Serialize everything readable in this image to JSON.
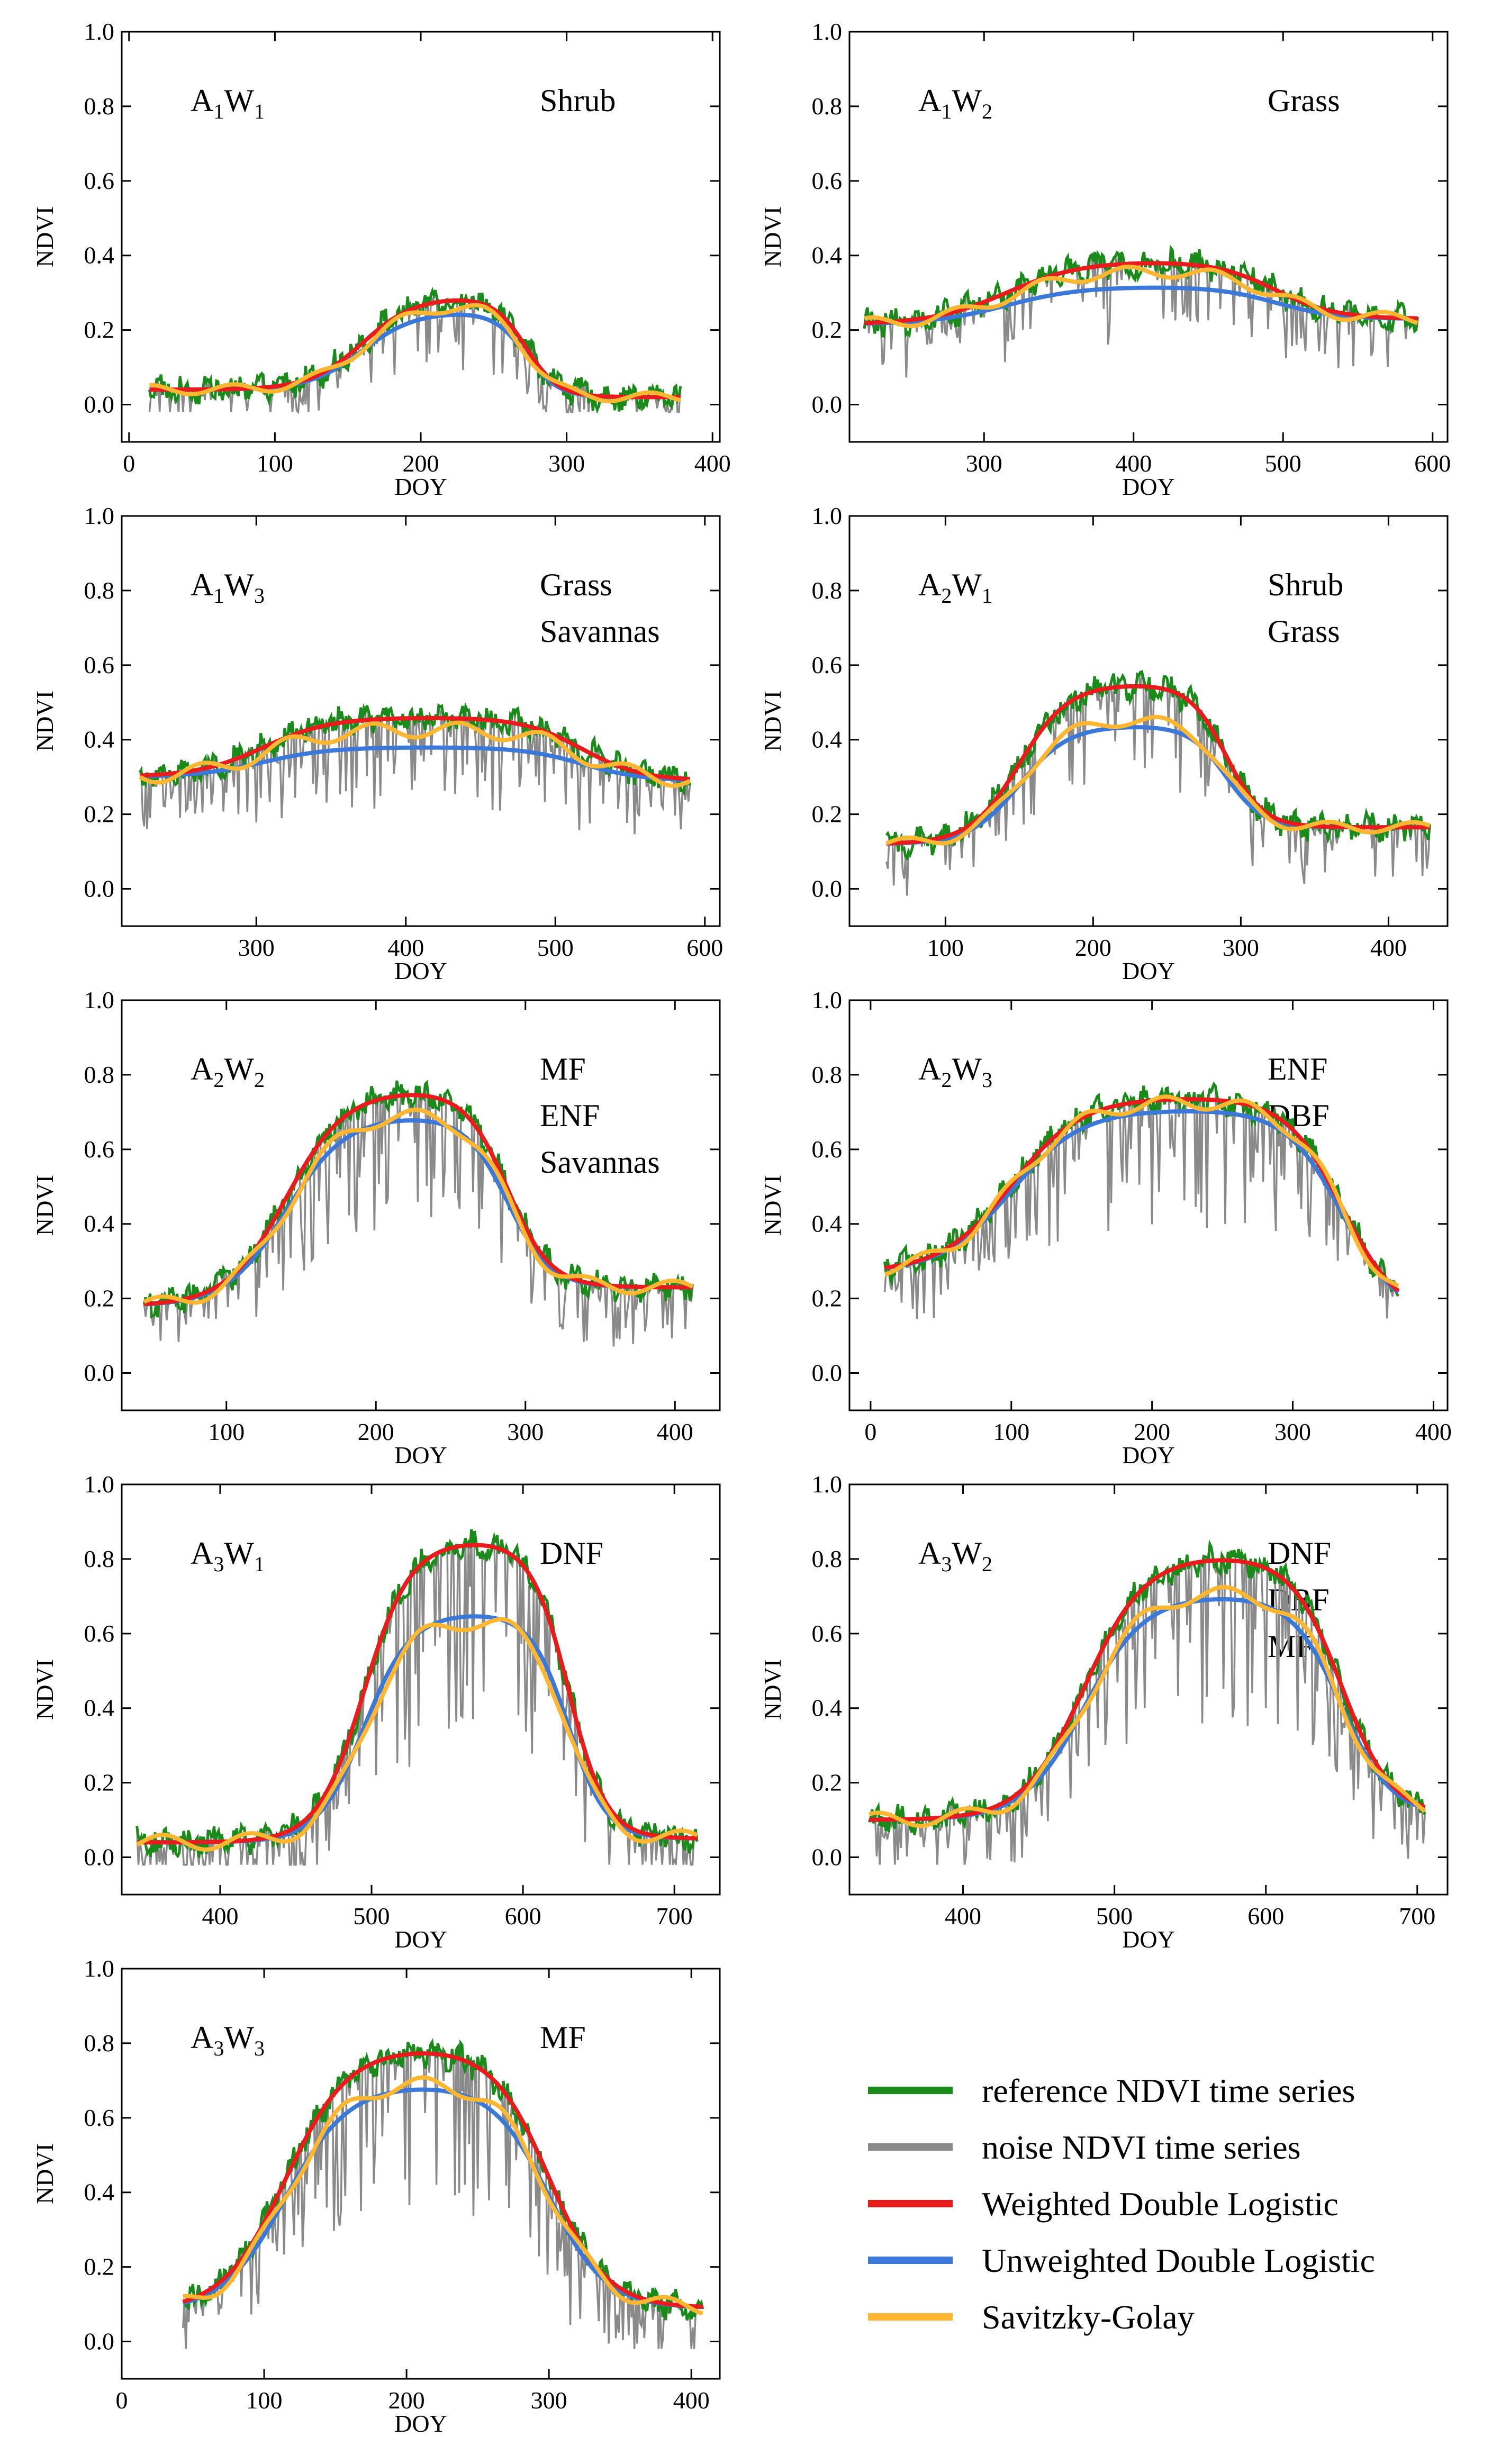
{
  "colors": {
    "reference": "#1a8a1a",
    "noise": "#8a8a8a",
    "weighted": "#e81c1c",
    "unweighted": "#3c78d8",
    "savgol": "#ffb732"
  },
  "legend": [
    {
      "key": "reference",
      "label": "reference NDVI time series"
    },
    {
      "key": "noise",
      "label": "noise NDVI time series"
    },
    {
      "key": "weighted",
      "label": "Weighted Double Logistic"
    },
    {
      "key": "unweighted",
      "label": "Unweighted Double Logistic"
    },
    {
      "key": "savgol",
      "label": "Savitzky-Golay"
    }
  ],
  "chart_data": [
    {
      "type": "line",
      "id": "A1W1",
      "panel_label": {
        "a": "1",
        "w": "1"
      },
      "land_cover": [
        "Shrub"
      ],
      "xlabel": "DOY",
      "ylabel": "NDVI",
      "xlim": [
        -5,
        405
      ],
      "ylim": [
        -0.1,
        1.0
      ],
      "x_range": [
        14,
        378
      ],
      "xticks": [
        0,
        100,
        200,
        300,
        400
      ],
      "yticks": [
        0.0,
        0.2,
        0.4,
        0.6,
        0.8,
        1.0
      ],
      "params": {
        "base": 0.04,
        "amp": 0.25,
        "sos": 160,
        "eos": 272,
        "rs": 0.055,
        "re": 0.09,
        "end": 0.02,
        "uw": 0.84,
        "sg": 0.92,
        "noise": 0.5
      },
      "series": [
        "reference NDVI time series",
        "noise NDVI time series",
        "Weighted Double Logistic",
        "Unweighted Double Logistic",
        "Savitzky-Golay"
      ]
    },
    {
      "type": "line",
      "id": "A1W2",
      "panel_label": {
        "a": "1",
        "w": "2"
      },
      "land_cover": [
        "Grass"
      ],
      "xlabel": "DOY",
      "ylabel": "NDVI",
      "xlim": [
        210,
        610
      ],
      "ylim": [
        -0.1,
        1.0
      ],
      "x_range": [
        220,
        590
      ],
      "xticks": [
        300,
        400,
        500,
        600
      ],
      "yticks": [
        0.0,
        0.2,
        0.4,
        0.6,
        0.8,
        1.0
      ],
      "params": {
        "base": 0.215,
        "amp": 0.17,
        "sos": 315,
        "eos": 495,
        "rs": 0.04,
        "re": 0.05,
        "end": 0.23,
        "uw": 0.6,
        "sg": 0.86,
        "noise": 0.6
      },
      "series": [
        "reference NDVI time series",
        "noise NDVI time series",
        "Weighted Double Logistic",
        "Unweighted Double Logistic",
        "Savitzky-Golay"
      ]
    },
    {
      "type": "line",
      "id": "A1W3",
      "panel_label": {
        "a": "1",
        "w": "3"
      },
      "land_cover": [
        "Grass",
        "Savannas"
      ],
      "xlabel": "DOY",
      "ylabel": "NDVI",
      "xlim": [
        210,
        610
      ],
      "ylim": [
        -0.1,
        1.0
      ],
      "x_range": [
        222,
        590
      ],
      "xticks": [
        300,
        400,
        500,
        600
      ],
      "yticks": [
        0.0,
        0.2,
        0.4,
        0.6,
        0.8,
        1.0
      ],
      "params": {
        "base": 0.3,
        "amp": 0.16,
        "sos": 305,
        "eos": 518,
        "rs": 0.045,
        "re": 0.05,
        "end": 0.29,
        "uw": 0.5,
        "sg": 0.8,
        "noise": 0.8
      },
      "series": [
        "reference NDVI time series",
        "noise NDVI time series",
        "Weighted Double Logistic",
        "Unweighted Double Logistic",
        "Savitzky-Golay"
      ]
    },
    {
      "type": "line",
      "id": "A2W1",
      "panel_label": {
        "a": "2",
        "w": "1"
      },
      "land_cover": [
        "Shrub",
        "Grass"
      ],
      "xlabel": "DOY",
      "ylabel": "NDVI",
      "xlim": [
        35,
        440
      ],
      "ylim": [
        -0.1,
        1.0
      ],
      "x_range": [
        60,
        428
      ],
      "xticks": [
        100,
        200,
        300,
        400
      ],
      "yticks": [
        0.0,
        0.2,
        0.4,
        0.6,
        0.8,
        1.0
      ],
      "params": {
        "base": 0.12,
        "amp": 0.43,
        "sos": 150,
        "eos": 290,
        "rs": 0.06,
        "re": 0.08,
        "end": 0.165,
        "uw": 0.74,
        "sg": 0.78,
        "noise": 0.55
      },
      "series": [
        "reference NDVI time series",
        "noise NDVI time series",
        "Weighted Double Logistic",
        "Unweighted Double Logistic",
        "Savitzky-Golay"
      ]
    },
    {
      "type": "line",
      "id": "A2W2",
      "panel_label": {
        "a": "2",
        "w": "2"
      },
      "land_cover": [
        "MF",
        "ENF",
        "Savannas"
      ],
      "xlabel": "DOY",
      "ylabel": "NDVI",
      "xlim": [
        30,
        430
      ],
      "ylim": [
        -0.1,
        1.0
      ],
      "x_range": [
        45,
        412
      ],
      "xticks": [
        100,
        200,
        300,
        400
      ],
      "yticks": [
        0.0,
        0.2,
        0.4,
        0.6,
        0.8,
        1.0
      ],
      "params": {
        "base": 0.18,
        "amp": 0.58,
        "sos": 140,
        "eos": 288,
        "rs": 0.05,
        "re": 0.07,
        "end": 0.23,
        "uw": 0.88,
        "sg": 0.9,
        "noise": 0.7
      },
      "series": [
        "reference NDVI time series",
        "noise NDVI time series",
        "Weighted Double Logistic",
        "Unweighted Double Logistic",
        "Savitzky-Golay"
      ]
    },
    {
      "type": "line",
      "id": "A2W3",
      "panel_label": {
        "a": "2",
        "w": "3"
      },
      "land_cover": [
        "ENF",
        "DBF"
      ],
      "xlabel": "DOY",
      "ylabel": "NDVI",
      "xlim": [
        -15,
        410
      ],
      "ylim": [
        -0.1,
        1.0
      ],
      "x_range": [
        10,
        375
      ],
      "xticks": [
        0,
        100,
        200,
        300,
        400
      ],
      "yticks": [
        0.0,
        0.2,
        0.4,
        0.6,
        0.8,
        1.0
      ],
      "params": {
        "base": 0.27,
        "amp": 0.47,
        "sos": 100,
        "eos": 335,
        "rs": 0.04,
        "re": 0.05,
        "end": 0.15,
        "uw": 0.93,
        "sg": 0.98,
        "noise": 0.7
      },
      "series": [
        "reference NDVI time series",
        "noise NDVI time series",
        "Weighted Double Logistic",
        "Unweighted Double Logistic",
        "Savitzky-Golay"
      ]
    },
    {
      "type": "line",
      "id": "A3W1",
      "panel_label": {
        "a": "3",
        "w": "1"
      },
      "land_cover": [
        "DNF"
      ],
      "xlabel": "DOY",
      "ylabel": "NDVI",
      "xlim": [
        335,
        730
      ],
      "ylim": [
        -0.1,
        1.0
      ],
      "x_range": [
        345,
        715
      ],
      "xticks": [
        400,
        500,
        600,
        700
      ],
      "yticks": [
        0.0,
        0.2,
        0.4,
        0.6,
        0.8,
        1.0
      ],
      "params": {
        "base": 0.04,
        "amp": 0.81,
        "sos": 495,
        "eos": 630,
        "rs": 0.065,
        "re": 0.08,
        "end": 0.05,
        "uw": 0.76,
        "sg": 0.74,
        "noise": 0.8
      },
      "series": [
        "reference NDVI time series",
        "noise NDVI time series",
        "Weighted Double Logistic",
        "Unweighted Double Logistic",
        "Savitzky-Golay"
      ]
    },
    {
      "type": "line",
      "id": "A3W2",
      "panel_label": {
        "a": "3",
        "w": "2"
      },
      "land_cover": [
        "DNF",
        "DBF",
        "MF"
      ],
      "xlabel": "DOY",
      "ylabel": "NDVI",
      "xlim": [
        325,
        720
      ],
      "ylim": [
        -0.1,
        1.0
      ],
      "x_range": [
        338,
        705
      ],
      "xticks": [
        400,
        500,
        600,
        700
      ],
      "yticks": [
        0.0,
        0.2,
        0.4,
        0.6,
        0.8,
        1.0
      ],
      "params": {
        "base": 0.1,
        "amp": 0.71,
        "sos": 480,
        "eos": 650,
        "rs": 0.05,
        "re": 0.06,
        "end": 0.11,
        "uw": 0.85,
        "sg": 0.87,
        "noise": 0.75
      },
      "series": [
        "reference NDVI time series",
        "noise NDVI time series",
        "Weighted Double Logistic",
        "Unweighted Double Logistic",
        "Savitzky-Golay"
      ]
    },
    {
      "type": "line",
      "id": "A3W3",
      "panel_label": {
        "a": "3",
        "w": "3"
      },
      "land_cover": [
        "MF"
      ],
      "xlabel": "DOY",
      "ylabel": "NDVI",
      "xlim": [
        0,
        420
      ],
      "ylim": [
        -0.1,
        1.0
      ],
      "x_range": [
        43,
        408
      ],
      "xticks": [
        0,
        100,
        200,
        300,
        400
      ],
      "yticks": [
        0.0,
        0.2,
        0.4,
        0.6,
        0.8,
        1.0
      ],
      "params": {
        "base": 0.08,
        "amp": 0.71,
        "sos": 115,
        "eos": 300,
        "rs": 0.045,
        "re": 0.05,
        "end": 0.09,
        "uw": 0.86,
        "sg": 0.88,
        "noise": 0.75
      },
      "series": [
        "reference NDVI time series",
        "noise NDVI time series",
        "Weighted Double Logistic",
        "Unweighted Double Logistic",
        "Savitzky-Golay"
      ]
    }
  ]
}
